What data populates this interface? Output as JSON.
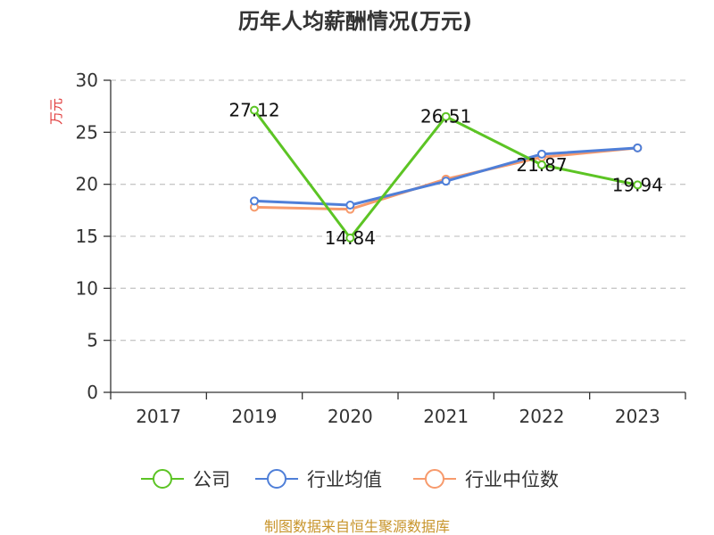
{
  "chart_data": {
    "type": "line",
    "title": "历年人均薪酬情况(万元)",
    "ylabel": "万元",
    "xlabel": "",
    "categories": [
      "2017",
      "2019",
      "2020",
      "2021",
      "2022",
      "2023"
    ],
    "ylim": [
      0,
      30
    ],
    "yticks": [
      0,
      5,
      10,
      15,
      20,
      25,
      30
    ],
    "grid": true,
    "legend_position": "bottom",
    "series": [
      {
        "name": "公司",
        "color": "#5cc424",
        "values": [
          null,
          27.12,
          14.84,
          26.51,
          21.87,
          19.94
        ],
        "labels": [
          null,
          "27.12",
          "14.84",
          "26.51",
          "21.87",
          "19.94"
        ]
      },
      {
        "name": "行业均值",
        "color": "#4f7fd8",
        "values": [
          null,
          18.4,
          18.0,
          20.3,
          22.9,
          23.5
        ],
        "labels": [
          null,
          null,
          null,
          null,
          null,
          null
        ]
      },
      {
        "name": "行业中位数",
        "color": "#f79a6c",
        "values": [
          null,
          17.8,
          17.6,
          20.5,
          22.6,
          23.5
        ],
        "labels": [
          null,
          null,
          null,
          null,
          null,
          null
        ]
      }
    ]
  },
  "source": "制图数据来自恒生聚源数据库",
  "colors": {
    "ylabel": "#e03a3a",
    "source": "#c8952c",
    "axis": "#333333",
    "grid": "#c8c8c8"
  }
}
